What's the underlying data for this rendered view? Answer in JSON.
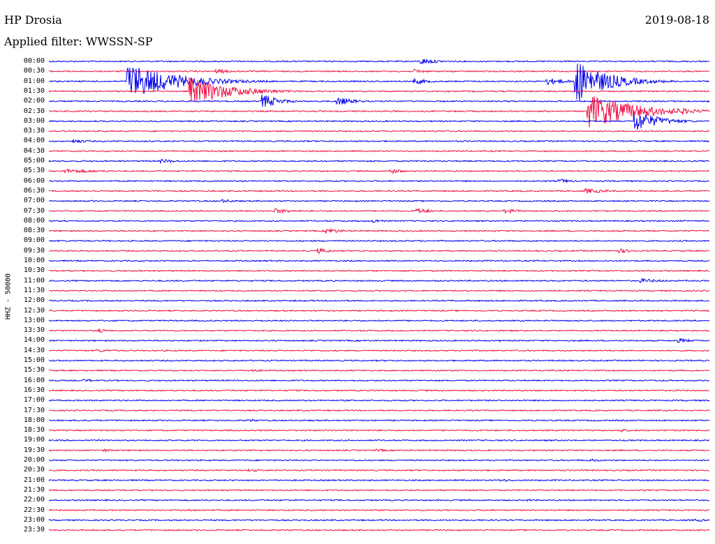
{
  "header": {
    "station": "HP Drosia",
    "date": "2019-08-18",
    "filter": "Applied filter: WWSSN-SP"
  },
  "channel_label": "HHZ - 50000",
  "colors": {
    "trace_a": "#0000ee",
    "trace_b": "#ee1144"
  },
  "chart_data": {
    "type": "line",
    "title": "HP Drosia",
    "subtitle": "Applied filter: WWSSN-SP",
    "ylabel": "HHZ - 50000",
    "rows": [
      "00:00",
      "00:30",
      "01:00",
      "01:30",
      "02:00",
      "02:30",
      "03:00",
      "03:30",
      "04:00",
      "04:30",
      "05:00",
      "05:30",
      "06:00",
      "06:30",
      "07:00",
      "07:30",
      "08:00",
      "08:30",
      "09:00",
      "09:30",
      "10:00",
      "10:30",
      "11:00",
      "11:30",
      "12:00",
      "12:30",
      "13:00",
      "13:30",
      "14:00",
      "14:30",
      "15:00",
      "15:30",
      "16:00",
      "16:30",
      "17:00",
      "17:30",
      "18:00",
      "18:30",
      "19:00",
      "19:30",
      "20:00",
      "20:30",
      "21:00",
      "21:30",
      "22:00",
      "22:30",
      "23:00",
      "23:30"
    ],
    "row_colors": [
      "blue",
      "red"
    ],
    "minutes_per_row": 30,
    "events": [
      {
        "row": 1,
        "min": 7.7,
        "amp": 3,
        "dur": 2.5
      },
      {
        "row": 0,
        "min": 17.0,
        "amp": 4.5,
        "dur": 2
      },
      {
        "row": 2,
        "min": 3.7,
        "amp": 25,
        "dur": 6
      },
      {
        "row": 3,
        "min": 6.5,
        "amp": 20,
        "dur": 5
      },
      {
        "row": 4,
        "min": 9.8,
        "amp": 10,
        "dur": 2
      },
      {
        "row": 4,
        "min": 13.2,
        "amp": 6,
        "dur": 2
      },
      {
        "row": 1,
        "min": 16.7,
        "amp": 3,
        "dur": 1.5
      },
      {
        "row": 2,
        "min": 16.7,
        "amp": 4,
        "dur": 2
      },
      {
        "row": 2,
        "min": 22.7,
        "amp": 5,
        "dur": 2.5
      },
      {
        "row": 2,
        "min": 24.0,
        "amp": 30,
        "dur": 4
      },
      {
        "row": 5,
        "min": 24.6,
        "amp": 25,
        "dur": 6
      },
      {
        "row": 6,
        "min": 26.7,
        "amp": 15,
        "dur": 3
      },
      {
        "row": 5,
        "min": 28.8,
        "amp": 5,
        "dur": 2
      },
      {
        "row": 11,
        "min": 0.8,
        "amp": 3,
        "dur": 6
      },
      {
        "row": 8,
        "min": 1.2,
        "amp": 3,
        "dur": 2
      },
      {
        "row": 10,
        "min": 5.2,
        "amp": 3,
        "dur": 2
      },
      {
        "row": 11,
        "min": 15.6,
        "amp": 3.5,
        "dur": 1.5
      },
      {
        "row": 12,
        "min": 23.3,
        "amp": 3,
        "dur": 1.5
      },
      {
        "row": 13,
        "min": 24.5,
        "amp": 3.5,
        "dur": 3
      },
      {
        "row": 14,
        "min": 8.0,
        "amp": 2.5,
        "dur": 2
      },
      {
        "row": 15,
        "min": 10.3,
        "amp": 3.5,
        "dur": 3
      },
      {
        "row": 15,
        "min": 16.8,
        "amp": 4,
        "dur": 2
      },
      {
        "row": 15,
        "min": 20.8,
        "amp": 3.5,
        "dur": 2
      },
      {
        "row": 17,
        "min": 12.7,
        "amp": 4,
        "dur": 2
      },
      {
        "row": 16,
        "min": 14.8,
        "amp": 2.5,
        "dur": 2
      },
      {
        "row": 19,
        "min": 12.3,
        "amp": 4,
        "dur": 1.5
      },
      {
        "row": 19,
        "min": 26.0,
        "amp": 3,
        "dur": 2
      },
      {
        "row": 22,
        "min": 27.0,
        "amp": 3,
        "dur": 3
      },
      {
        "row": 27,
        "min": 2.3,
        "amp": 2.5,
        "dur": 2
      },
      {
        "row": 28,
        "min": 28.7,
        "amp": 3,
        "dur": 2
      },
      {
        "row": 29,
        "min": 2.3,
        "amp": 2,
        "dur": 3
      },
      {
        "row": 31,
        "min": 9.2,
        "amp": 2.2,
        "dur": 2
      },
      {
        "row": 32,
        "min": 1.7,
        "amp": 2,
        "dur": 2
      },
      {
        "row": 36,
        "min": 9.2,
        "amp": 2,
        "dur": 1.5
      },
      {
        "row": 37,
        "min": 26.0,
        "amp": 2.2,
        "dur": 2
      },
      {
        "row": 39,
        "min": 2.6,
        "amp": 2,
        "dur": 2
      },
      {
        "row": 39,
        "min": 15.0,
        "amp": 2,
        "dur": 2
      },
      {
        "row": 40,
        "min": 24.7,
        "amp": 2,
        "dur": 2
      },
      {
        "row": 41,
        "min": 9.2,
        "amp": 2,
        "dur": 2
      },
      {
        "row": 42,
        "min": 20.6,
        "amp": 2,
        "dur": 2
      },
      {
        "row": 44,
        "min": 21.8,
        "amp": 1.5,
        "dur": 1.5
      },
      {
        "row": 45,
        "min": 6.5,
        "amp": 1.5,
        "dur": 1.5
      },
      {
        "row": 46,
        "min": 29.5,
        "amp": 2,
        "dur": 2
      }
    ],
    "gridlines": false
  }
}
